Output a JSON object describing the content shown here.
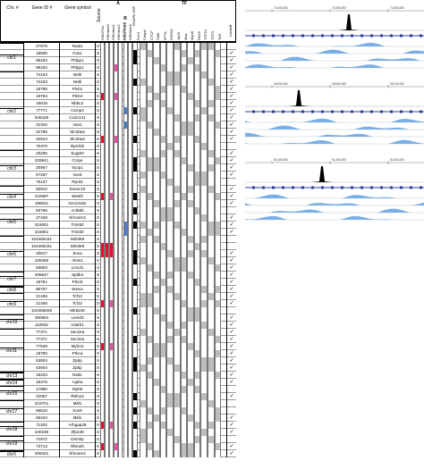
{
  "headers": {
    "chr": "Chr. #",
    "gene_id": "Gene ID #",
    "gene_symbol": "Gene symbol",
    "source": "Source",
    "group_a": "A",
    "group_r": "R",
    "group_tf": "TF",
    "lamin": "LaminB",
    "pol2": "Pol II",
    "rnapii_ser5": "RNAPII-S5P",
    "marks_a": [
      "H3K27ac",
      "H3K4me3",
      "H3K4me1",
      "H3K4me2",
      "H3K79me2"
    ],
    "marks_r": [
      "H3K27me3",
      "H3K9me3"
    ],
    "tfs": [
      "Cebpb",
      "CTCF",
      "Cbfb",
      "ETS1",
      "GATA3",
      "JunD",
      "Max",
      "MyoD",
      "PAX5",
      "TCF12",
      "TCF3",
      "Tcf3"
    ]
  },
  "colors": {
    "red": "#e8102a",
    "pink": "#ee4fa6",
    "blue": "#4a7fc8",
    "black": "#000000",
    "gray": "#bdbdbd",
    "white": "#ffffff"
  },
  "rows": [
    {
      "chr": "chr1",
      "id": "27878",
      "sym": "Tada1",
      "src": "S",
      "a": "",
      "r": "",
      "pol": "",
      "tf": "",
      "lam": false
    },
    {
      "chr": "",
      "id": "18605",
      "sym": "Fas1",
      "src": "S",
      "a": "",
      "r": "",
      "pol": "",
      "tf": "",
      "lam": true
    },
    {
      "chr": "",
      "id": "98432",
      "sym": "Phlpp1",
      "src": "S",
      "a": "",
      "r": "",
      "pol": "",
      "tf": "",
      "lam": true
    },
    {
      "chr": "",
      "id": "98432",
      "sym": "Phlpp1",
      "src": "S",
      "a": "...P",
      "r": "",
      "pol": "",
      "tf": "",
      "lam": true
    },
    {
      "chr": "chr2",
      "id": "74103",
      "sym": "Nebl",
      "src": "S",
      "a": "",
      "r": "",
      "pol": "",
      "tf": "",
      "lam": true
    },
    {
      "chr": "",
      "id": "74103",
      "sym": "Nebl",
      "src": "S",
      "a": "",
      "r": "",
      "pol": "",
      "tf": "",
      "lam": true
    },
    {
      "chr": "",
      "id": "18795",
      "sym": "Plcb1",
      "src": "S",
      "a": "",
      "r": "",
      "pol": "",
      "tf": "",
      "lam": true
    },
    {
      "chr": "",
      "id": "18794",
      "sym": "Plcb4",
      "src": "S",
      "a": "R..P",
      "r": "",
      "pol": "",
      "tf": "",
      "lam": true
    },
    {
      "chr": "",
      "id": "18019",
      "sym": "Nfatc2",
      "src": "S",
      "a": "",
      "r": "",
      "pol": "",
      "tf": "",
      "lam": true
    },
    {
      "chr": "",
      "id": "77771",
      "sym": "Csmp3",
      "src": "S",
      "a": "",
      "r": "B",
      "pol": "",
      "tf": "",
      "lam": true
    },
    {
      "chr": "",
      "id": "545428",
      "sym": "Ccdc141",
      "src": "S",
      "a": "",
      "r": "",
      "pol": "",
      "tf": "",
      "lam": true
    },
    {
      "chr": "",
      "id": "22325",
      "sym": "Vav2",
      "src": "S",
      "a": "",
      "r": "B",
      "pol": "",
      "tf": "",
      "lam": true
    },
    {
      "chr": "",
      "id": "22785",
      "sym": "Slc30a4",
      "src": "S",
      "a": "",
      "r": "",
      "pol": "",
      "tf": "",
      "lam": true
    },
    {
      "chr": "",
      "id": "20524",
      "sym": "Slc30a4",
      "src": "S",
      "a": "R..P",
      "r": "",
      "pol": "",
      "tf": "",
      "lam": true
    },
    {
      "chr": "",
      "id": "70470",
      "sym": "Rprd1b",
      "src": "S",
      "a": "",
      "r": "",
      "pol": "",
      "tf": "",
      "lam": false
    },
    {
      "chr": "chr3",
      "id": "20205",
      "sym": "Sugt20",
      "src": "S",
      "a": "",
      "r": "",
      "pol": "",
      "tf": "",
      "lam": true
    },
    {
      "chr": "",
      "id": "229841",
      "sym": "Ccrpe",
      "src": "S",
      "a": "",
      "r": "",
      "pol": "",
      "tf": "",
      "lam": true
    },
    {
      "chr": "",
      "id": "20957",
      "sym": "Sycp1",
      "src": "S",
      "a": "",
      "r": "",
      "pol": "",
      "tf": "",
      "lam": true
    },
    {
      "chr": "",
      "id": "57257",
      "sym": "Vav3",
      "src": "S",
      "a": "",
      "r": "",
      "pol": "",
      "tf": "",
      "lam": true
    },
    {
      "chr": "",
      "id": "75137",
      "sym": "Rprd2",
      "src": "S",
      "a": "",
      "r": "",
      "pol": "",
      "tf": "",
      "lam": false
    },
    {
      "chr": "chr4",
      "id": "50912",
      "sym": "Exosc10",
      "src": "S",
      "a": "",
      "r": "",
      "pol": "",
      "tf": "",
      "lam": true
    },
    {
      "chr": "",
      "id": "242687",
      "sym": "Wasf2",
      "src": "S",
      "a": "R.P",
      "r": "",
      "pol": "",
      "tf": "",
      "lam": true
    },
    {
      "chr": "",
      "id": "195531",
      "sym": "Gm13152",
      "src": "S",
      "a": "",
      "r": "",
      "pol": "",
      "tf": "",
      "lam": true
    },
    {
      "chr": "chr5",
      "id": "83766",
      "sym": "Actb6b",
      "src": "S",
      "a": "",
      "r": "",
      "pol": "",
      "tf": "",
      "lam": false
    },
    {
      "chr": "",
      "id": "27428",
      "sym": "Shroom3",
      "src": "S",
      "a": "",
      "r": "",
      "pol": "",
      "tf": "",
      "lam": true
    },
    {
      "chr": "",
      "id": "215061",
      "sym": "Trim50",
      "src": "S",
      "a": "",
      "r": "B",
      "pol": "",
      "tf": "",
      "lam": true
    },
    {
      "chr": "",
      "id": "215061",
      "sym": "Trim50",
      "src": "S",
      "a": "",
      "r": "B",
      "pol": "",
      "tf": "",
      "lam": true
    },
    {
      "chr": "chr6",
      "id": "102465191",
      "sym": "Mirt369",
      "src": "S",
      "a": "",
      "r": "",
      "pol": "",
      "tf": "",
      "lam": false
    },
    {
      "chr": "",
      "id": "102465191",
      "sym": "Mirt369",
      "src": "S",
      "a": "RRR",
      "r": "",
      "pol": "",
      "tf": "",
      "lam": false
    },
    {
      "chr": "",
      "id": "20617",
      "sym": "Snca",
      "src": "S",
      "a": "RRR",
      "r": "",
      "pol": "",
      "tf": "",
      "lam": true
    },
    {
      "chr": "",
      "id": "236266",
      "sym": "Alms1",
      "src": "S",
      "a": "",
      "r": "",
      "pol": "",
      "tf": "",
      "lam": true
    },
    {
      "chr": "",
      "id": "83603",
      "sym": "Lmcd1",
      "src": "S",
      "a": "",
      "r": "",
      "pol": "",
      "tf": "",
      "lam": true
    },
    {
      "chr": "chr7",
      "id": "208647",
      "sym": "Spltb4",
      "src": "S",
      "a": "",
      "r": "",
      "pol": "",
      "tf": "",
      "lam": true
    },
    {
      "chr": "",
      "id": "18751",
      "sym": "Prkcb",
      "src": "S",
      "a": "",
      "r": "",
      "pol": "",
      "tf": "",
      "lam": true
    },
    {
      "chr": "chr8",
      "id": "80707",
      "sym": "Wwox",
      "src": "S",
      "a": "",
      "r": "",
      "pol": "",
      "tf": "",
      "lam": true
    },
    {
      "chr": "chr9",
      "id": "21406",
      "sym": "Tcf12",
      "src": "S",
      "a": "",
      "r": "",
      "pol": "",
      "tf": "",
      "lam": true
    },
    {
      "chr": "",
      "id": "21406",
      "sym": "Tcf12",
      "src": "S",
      "a": "R.P",
      "r": "",
      "pol": "",
      "tf": "",
      "lam": true
    },
    {
      "chr": "",
      "id": "102465836",
      "sym": "Mir6236",
      "src": "S",
      "a": "",
      "r": "",
      "pol": "",
      "tf": "",
      "lam": false
    },
    {
      "chr": "chr10",
      "id": "380664",
      "sym": "Lemd3",
      "src": "S",
      "a": "",
      "r": "",
      "pol": "",
      "tf": "",
      "lam": true
    },
    {
      "chr": "",
      "id": "110532",
      "sym": "Adarb1",
      "src": "S",
      "a": "",
      "r": "",
      "pol": "",
      "tf": "",
      "lam": true
    },
    {
      "chr": "chr11",
      "id": "77371",
      "sym": "Sec24a",
      "src": "S",
      "a": "",
      "r": "",
      "pol": "",
      "tf": "",
      "lam": true
    },
    {
      "chr": "",
      "id": "77371",
      "sym": "Sec24a",
      "src": "S",
      "a": "",
      "r": "",
      "pol": "",
      "tf": "",
      "lam": true
    },
    {
      "chr": "",
      "id": "77529",
      "sym": "Myh10",
      "src": "S",
      "a": "R.P",
      "r": "",
      "pol": "",
      "tf": "",
      "lam": true
    },
    {
      "chr": "",
      "id": "18750",
      "sym": "Prkca",
      "src": "S",
      "a": "",
      "r": "",
      "pol": "",
      "tf": "",
      "lam": true
    },
    {
      "chr": "",
      "id": "53604",
      "sym": "Zpbp",
      "src": "S",
      "a": "",
      "r": "",
      "pol": "",
      "tf": "",
      "lam": true
    },
    {
      "chr": "",
      "id": "53604",
      "sym": "Zpbp",
      "src": "S",
      "a": "",
      "r": "",
      "pol": "",
      "tf": "",
      "lam": true
    },
    {
      "chr": "chr13",
      "id": "18203",
      "sym": "Nsd1",
      "src": "S",
      "a": "",
      "r": "",
      "pol": "",
      "tf": "",
      "lam": true
    },
    {
      "chr": "chr14",
      "id": "16475",
      "sym": "Ajuba",
      "src": "S",
      "a": "",
      "r": "",
      "pol": "",
      "tf": "",
      "lam": true
    },
    {
      "chr": "chr15",
      "id": "17886",
      "sym": "Myh9",
      "src": "S",
      "a": "",
      "r": "",
      "pol": "",
      "tf": "",
      "lam": false
    },
    {
      "chr": "",
      "id": "22057",
      "sym": "Rbfox2",
      "src": "S",
      "a": "",
      "r": "",
      "pol": "",
      "tf": "",
      "lam": true
    },
    {
      "chr": "chr17",
      "id": "223701",
      "sym": "Mkl1",
      "src": "S",
      "a": "",
      "r": "",
      "pol": "",
      "tf": "",
      "lam": false
    },
    {
      "chr": "",
      "id": "56616",
      "sym": "Sox9",
      "src": "S",
      "a": "",
      "r": "",
      "pol": "",
      "tf": "",
      "lam": false
    },
    {
      "chr": "",
      "id": "65344",
      "sym": "Mkl1",
      "src": "S",
      "a": "",
      "r": "",
      "pol": "",
      "tf": "",
      "lam": true
    },
    {
      "chr": "chr18",
      "id": "71302",
      "sym": "Arhgap26",
      "src": "S",
      "a": "R.P",
      "r": "",
      "pol": "",
      "tf": "",
      "lam": true
    },
    {
      "chr": "",
      "id": "240186",
      "sym": "Zfp438",
      "src": "S",
      "a": "",
      "r": "",
      "pol": "",
      "tf": "",
      "lam": true
    },
    {
      "chr": "chr19",
      "id": "71972",
      "sym": "Dmmlp",
      "src": "S",
      "a": "",
      "r": "",
      "pol": "",
      "tf": "",
      "lam": false
    },
    {
      "chr": "",
      "id": "73713",
      "sym": "Rbm20",
      "src": "S",
      "a": "R..P",
      "r": "",
      "pol": "",
      "tf": "",
      "lam": true
    },
    {
      "chr": "chrX",
      "id": "208431",
      "sym": "Shroom4",
      "src": "S",
      "a": "",
      "r": "",
      "pol": "",
      "tf": "",
      "lam": true
    }
  ],
  "browser": {
    "panels": [
      {
        "coords": [
          "73,400,000",
          "73,450,000",
          "73,500,000"
        ],
        "peak": 0.58
      },
      {
        "coords": [
          "28,000,000",
          "28,050,000",
          "28,100,000"
        ],
        "peak": 0.3
      },
      {
        "coords": [
          "51,400,000",
          "51,450,000",
          "51,500,000"
        ],
        "peak": 0.43
      }
    ]
  }
}
